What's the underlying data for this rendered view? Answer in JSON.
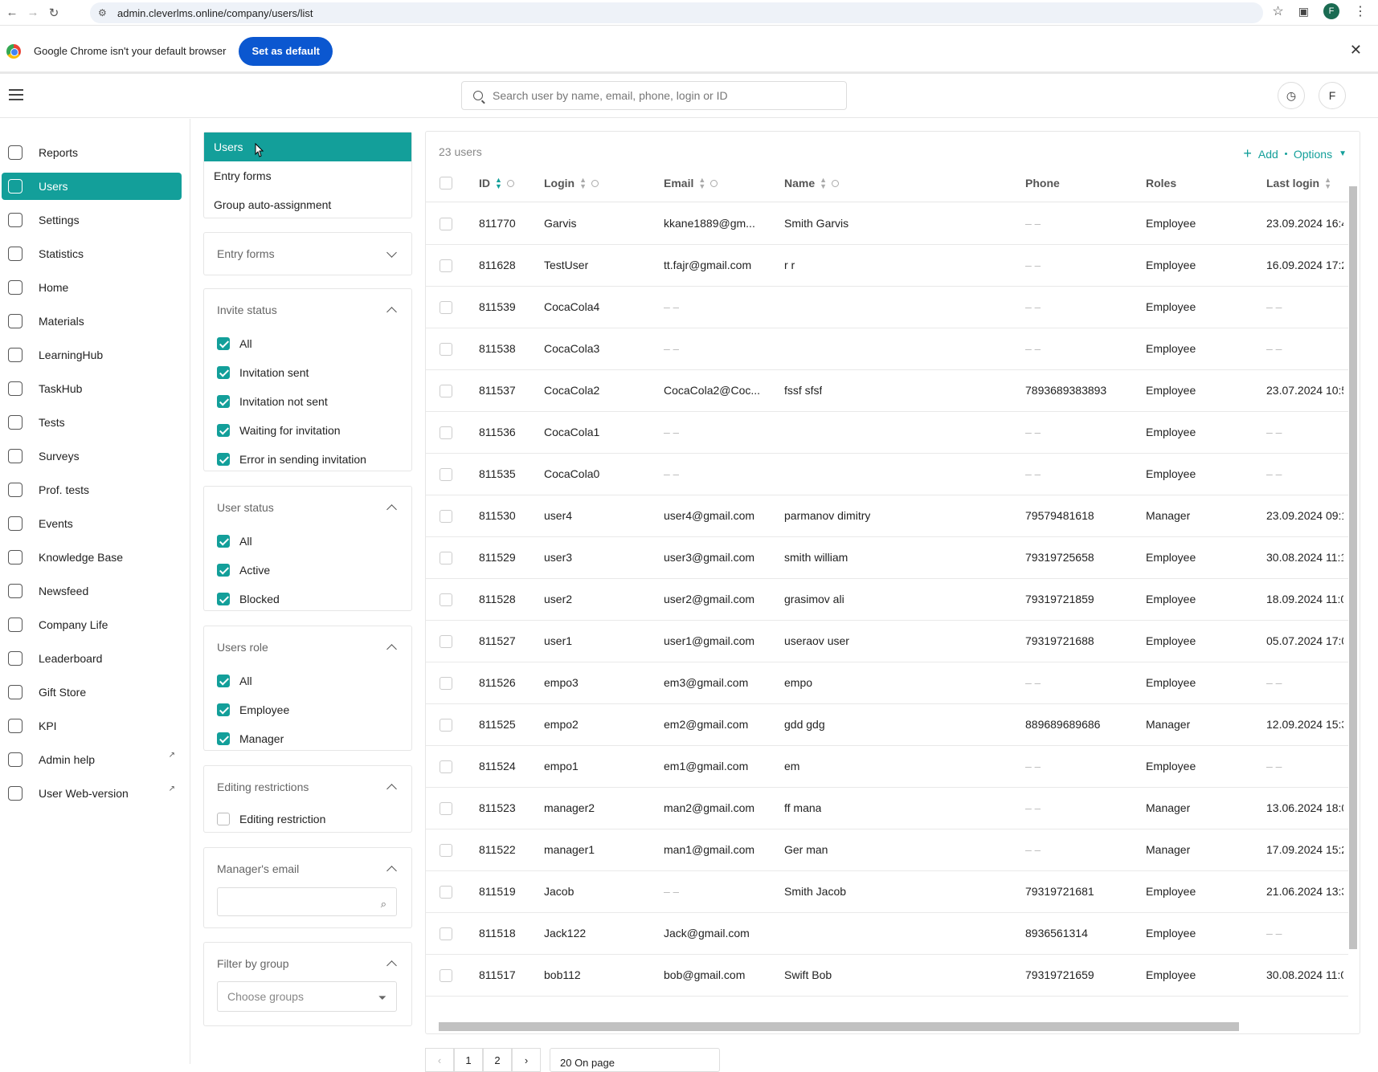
{
  "browser": {
    "url": "admin.cleverlms.online/company/users/list",
    "profile_initial": "F"
  },
  "infobar": {
    "message": "Google Chrome isn't your default browser",
    "set_default_label": "Set as default"
  },
  "header": {
    "search_placeholder": "Search user by name, email, phone, login or ID",
    "avatar_initial": "F"
  },
  "sidebar": {
    "items": [
      {
        "label": "Reports",
        "icon": "reports-icon"
      },
      {
        "label": "Users",
        "icon": "users-icon",
        "active": true
      },
      {
        "label": "Settings",
        "icon": "gear-icon"
      },
      {
        "label": "Statistics",
        "icon": "chart-icon"
      },
      {
        "label": "Home",
        "icon": "home-icon"
      },
      {
        "label": "Materials",
        "icon": "document-icon"
      },
      {
        "label": "LearningHub",
        "icon": "learning-icon"
      },
      {
        "label": "TaskHub",
        "icon": "task-icon"
      },
      {
        "label": "Tests",
        "icon": "tests-icon"
      },
      {
        "label": "Surveys",
        "icon": "survey-icon"
      },
      {
        "label": "Prof. tests",
        "icon": "prof-tests-icon"
      },
      {
        "label": "Events",
        "icon": "calendar-icon"
      },
      {
        "label": "Knowledge Base",
        "icon": "info-icon"
      },
      {
        "label": "Newsfeed",
        "icon": "chat-icon"
      },
      {
        "label": "Company Life",
        "icon": "play-icon"
      },
      {
        "label": "Leaderboard",
        "icon": "trophy-icon"
      },
      {
        "label": "Gift Store",
        "icon": "gift-icon"
      },
      {
        "label": "KPI",
        "icon": "trend-icon"
      },
      {
        "label": "Admin help",
        "icon": "star-icon",
        "external": true
      },
      {
        "label": "User Web-version",
        "icon": "monitor-icon",
        "external": true
      }
    ]
  },
  "submenu": {
    "items": [
      "Users",
      "Entry forms",
      "Group auto-assignment"
    ]
  },
  "filters": {
    "entry_forms": {
      "title": "Entry forms"
    },
    "invite_status": {
      "title": "Invite status",
      "options": [
        "All",
        "Invitation sent",
        "Invitation not sent",
        "Waiting for invitation",
        "Error in sending invitation"
      ]
    },
    "user_status": {
      "title": "User status",
      "options": [
        "All",
        "Active",
        "Blocked"
      ]
    },
    "users_role": {
      "title": "Users role",
      "options": [
        "All",
        "Employee",
        "Manager"
      ]
    },
    "editing_restrictions": {
      "title": "Editing restrictions",
      "options": [
        "Editing restriction"
      ]
    },
    "managers_email": {
      "title": "Manager's email",
      "value": ""
    },
    "filter_by_group": {
      "title": "Filter by group",
      "placeholder": "Choose groups"
    }
  },
  "table": {
    "count": "23 users",
    "add_label": "Add",
    "options_label": "Options",
    "columns": [
      "ID",
      "Login",
      "Email",
      "Name",
      "Phone",
      "Roles",
      "Last login"
    ],
    "empty": "– –",
    "rows": [
      {
        "id": "811770",
        "login": "Garvis",
        "email": "kkane1889@gm...",
        "name": "Smith Garvis",
        "phone": "",
        "role": "Employee",
        "last": "23.09.2024 16:4"
      },
      {
        "id": "811628",
        "login": "TestUser",
        "email": "tt.fajr@gmail.com",
        "name": "r r",
        "phone": "",
        "role": "Employee",
        "last": "16.09.2024 17:2"
      },
      {
        "id": "811539",
        "login": "CocaCola4",
        "email": "",
        "name": "",
        "phone": "",
        "role": "Employee",
        "last": ""
      },
      {
        "id": "811538",
        "login": "CocaCola3",
        "email": "",
        "name": "",
        "phone": "",
        "role": "Employee",
        "last": ""
      },
      {
        "id": "811537",
        "login": "CocaCola2",
        "email": "CocaCola2@Coc...",
        "name": "fssf sfsf",
        "phone": "7893689383893",
        "role": "Employee",
        "last": "23.07.2024 10:5"
      },
      {
        "id": "811536",
        "login": "CocaCola1",
        "email": "",
        "name": "",
        "phone": "",
        "role": "Employee",
        "last": ""
      },
      {
        "id": "811535",
        "login": "CocaCola0",
        "email": "",
        "name": "",
        "phone": "",
        "role": "Employee",
        "last": ""
      },
      {
        "id": "811530",
        "login": "user4",
        "email": "user4@gmail.com",
        "name": "parmanov dimitry",
        "phone": "79579481618",
        "role": "Manager",
        "last": "23.09.2024 09:1"
      },
      {
        "id": "811529",
        "login": "user3",
        "email": "user3@gmail.com",
        "name": "smith william",
        "phone": "79319725658",
        "role": "Employee",
        "last": "30.08.2024 11:1"
      },
      {
        "id": "811528",
        "login": "user2",
        "email": "user2@gmail.com",
        "name": "grasimov ali",
        "phone": "79319721859",
        "role": "Employee",
        "last": "18.09.2024 11:0"
      },
      {
        "id": "811527",
        "login": "user1",
        "email": "user1@gmail.com",
        "name": "useraov user",
        "phone": "79319721688",
        "role": "Employee",
        "last": "05.07.2024 17:0"
      },
      {
        "id": "811526",
        "login": "empo3",
        "email": "em3@gmail.com",
        "name": "empo",
        "phone": "",
        "role": "Employee",
        "last": ""
      },
      {
        "id": "811525",
        "login": "empo2",
        "email": "em2@gmail.com",
        "name": "gdd gdg",
        "phone": "889689689686",
        "role": "Manager",
        "last": "12.09.2024 15:3"
      },
      {
        "id": "811524",
        "login": "empo1",
        "email": "em1@gmail.com",
        "name": "em",
        "phone": "",
        "role": "Employee",
        "last": ""
      },
      {
        "id": "811523",
        "login": "manager2",
        "email": "man2@gmail.com",
        "name": "ff mana",
        "phone": "",
        "role": "Manager",
        "last": "13.06.2024 18:0"
      },
      {
        "id": "811522",
        "login": "manager1",
        "email": "man1@gmail.com",
        "name": "Ger man",
        "phone": "",
        "role": "Manager",
        "last": "17.09.2024 15:2"
      },
      {
        "id": "811519",
        "login": "Jacob",
        "email": "",
        "name": "Smith Jacob",
        "phone": "79319721681",
        "role": "Employee",
        "last": "21.06.2024 13:3"
      },
      {
        "id": "811518",
        "login": "Jack122",
        "email": "Jack@gmail.com",
        "name": "",
        "phone": "8936561314",
        "role": "Employee",
        "last": ""
      },
      {
        "id": "811517",
        "login": "bob112",
        "email": "bob@gmail.com",
        "name": "Swift Bob",
        "phone": "79319721659",
        "role": "Employee",
        "last": "30.08.2024 11:0"
      }
    ]
  },
  "pagination": {
    "pages": [
      "1",
      "2"
    ],
    "per_page": "20 On page"
  }
}
